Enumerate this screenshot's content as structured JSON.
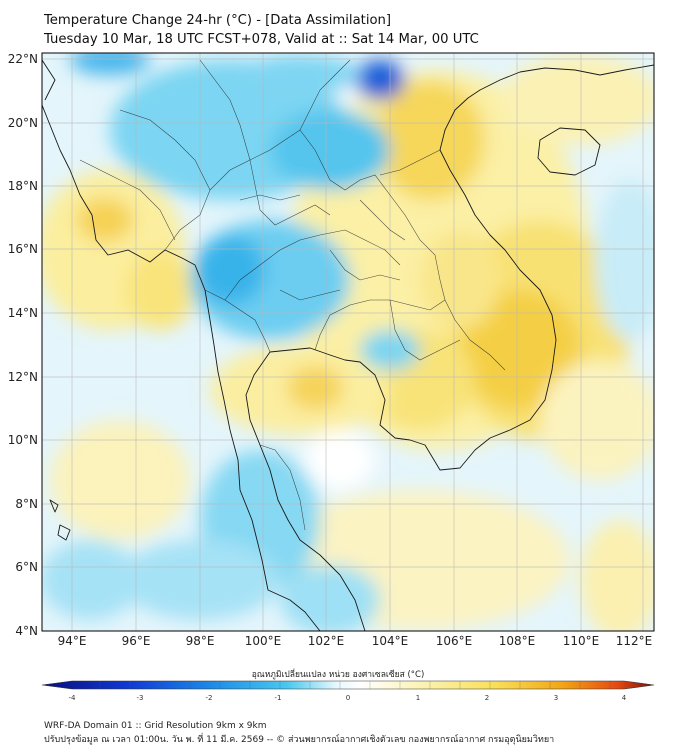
{
  "header": {
    "line1": "Temperature Change 24-hr (°C) - [Data Assimilation]",
    "line2": "Tuesday 10 Mar, 18 UTC FCST+078, Valid at :: Sat 14 Mar, 00 UTC"
  },
  "axes": {
    "lat_labels": [
      "22°N",
      "20°N",
      "18°N",
      "16°N",
      "14°N",
      "12°N",
      "10°N",
      "8°N",
      "6°N",
      "4°N"
    ],
    "lon_labels": [
      "94°E",
      "96°E",
      "98°E",
      "100°E",
      "102°E",
      "104°E",
      "106°E",
      "108°E",
      "110°E",
      "112°E"
    ]
  },
  "colorbar": {
    "title": "อุณหภูมิเปลี่ยนแปลง หน่วย องศาเซลเซียส (°C)",
    "ticks": [
      "-4",
      "-3",
      "-2",
      "-1",
      "0",
      "1",
      "2",
      "3",
      "4"
    ],
    "stops": [
      "#0a0f7a",
      "#1038d4",
      "#1e8ce8",
      "#48c8ef",
      "#f2fbff",
      "#ffffff",
      "#fbf3b4",
      "#f9df58",
      "#f2a516",
      "#e44a12",
      "#7a0c08"
    ]
  },
  "footer": {
    "line1": "WRF-DA Domain 01 :: Grid Resolution 9km x 9km",
    "line2": "ปรับปรุงข้อมูล ณ เวลา 01:00น. วัน พ. ที่ 11 มี.ค. 2569 -- © ส่วนพยากรณ์อากาศเชิงตัวเลข กองพยากรณ์อากาศ กรมอุตุนิยมวิทยา"
  }
}
